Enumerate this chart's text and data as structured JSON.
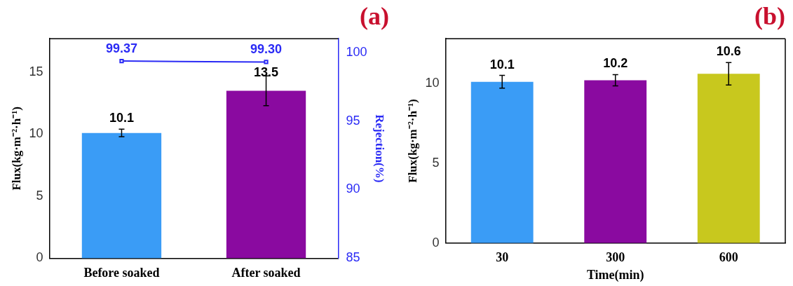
{
  "chart_data": [
    {
      "type": "bar",
      "title": "(a)",
      "ylabel": "Flux(kg·m⁻²·h⁻¹)",
      "y2label": "Rejection(%)",
      "categories": [
        "Before soaked",
        "After soaked"
      ],
      "series": [
        {
          "colors": [
            "#3a9cf6",
            "#8a0aa0"
          ],
          "values": [
            10.1,
            13.5
          ],
          "errors": [
            0.3,
            1.2
          ],
          "value_labels": [
            "10.1",
            "13.5"
          ]
        },
        {
          "type": "line",
          "axis": "y2",
          "color": "#2a2af5",
          "values": [
            99.37,
            99.3
          ],
          "value_labels": [
            "99.37",
            "99.30"
          ]
        }
      ],
      "ylim": [
        0,
        17.7
      ],
      "yticks": [
        0,
        5,
        10,
        15
      ],
      "y2lim": [
        85,
        101
      ],
      "y2ticks": [
        85,
        90,
        95,
        100
      ],
      "marker": "square"
    },
    {
      "type": "bar",
      "title": "(b)",
      "ylabel": "Flux(kg·m⁻²·h⁻¹)",
      "xlabel": "Time(min)",
      "categories": [
        "30",
        "300",
        "600"
      ],
      "series": [
        {
          "colors": [
            "#3a9cf6",
            "#8a0aa0",
            "#c8c81e"
          ],
          "values": [
            10.1,
            10.2,
            10.6
          ],
          "errors": [
            0.4,
            0.35,
            0.7
          ],
          "value_labels": [
            "10.1",
            "10.2",
            "10.6"
          ]
        }
      ],
      "ylim": [
        0,
        12.8
      ],
      "yticks": [
        0,
        5,
        10
      ]
    }
  ]
}
